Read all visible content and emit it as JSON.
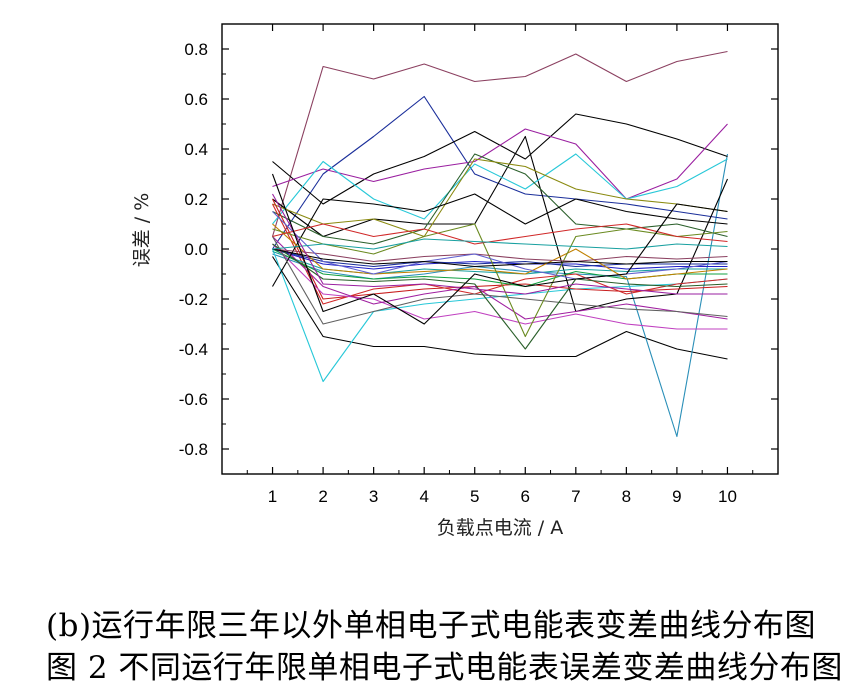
{
  "chart_data": {
    "type": "line",
    "xlabel": "负载点电流 / A",
    "ylabel": "误差 / %",
    "xlim": [
      0,
      11
    ],
    "ylim": [
      -0.9,
      0.9
    ],
    "x": [
      1,
      2,
      3,
      4,
      5,
      6,
      7,
      8,
      9,
      10
    ],
    "x_ticks": [
      "1",
      "2",
      "3",
      "4",
      "5",
      "6",
      "7",
      "8",
      "9",
      "10"
    ],
    "y_ticks": [
      "0.8",
      "0.6",
      "0.4",
      "0.2",
      "0.0",
      "-0.2",
      "-0.4",
      "-0.6",
      "-0.8"
    ],
    "y_tick_values": [
      0.8,
      0.6,
      0.4,
      0.2,
      0.0,
      -0.2,
      -0.4,
      -0.6,
      -0.8
    ],
    "grid": false,
    "legend": "none",
    "series": [
      {
        "color": "#8B4060",
        "values": [
          0.05,
          0.73,
          0.68,
          0.74,
          0.67,
          0.69,
          0.78,
          0.67,
          0.75,
          0.79
        ]
      },
      {
        "color": "#000000",
        "values": [
          -0.03,
          -0.35,
          -0.39,
          -0.39,
          -0.42,
          -0.43,
          -0.43,
          -0.33,
          -0.4,
          -0.44
        ]
      },
      {
        "color": "#2A8FB8",
        "values": [
          -0.02,
          -0.09,
          -0.12,
          -0.1,
          -0.07,
          -0.09,
          -0.1,
          -0.11,
          -0.75,
          0.38
        ]
      },
      {
        "color": "#28C8D8",
        "values": [
          0.0,
          -0.53,
          -0.25,
          -0.22,
          -0.2,
          -0.18,
          -0.16,
          -0.15,
          -0.14,
          -0.12
        ]
      },
      {
        "color": "#1A2E9A",
        "values": [
          0.0,
          0.3,
          0.45,
          0.61,
          0.3,
          0.22,
          0.2,
          0.18,
          0.15,
          0.12
        ]
      },
      {
        "color": "#000000",
        "values": [
          0.35,
          0.18,
          0.3,
          0.37,
          0.47,
          0.36,
          0.54,
          0.5,
          0.44,
          0.37
        ]
      },
      {
        "color": "#9A1FA0",
        "values": [
          0.25,
          0.32,
          0.27,
          0.32,
          0.35,
          0.48,
          0.42,
          0.2,
          0.28,
          0.5
        ]
      },
      {
        "color": "#000000",
        "values": [
          0.2,
          0.05,
          0.12,
          0.1,
          0.1,
          0.45,
          -0.25,
          -0.2,
          -0.18,
          0.28
        ]
      },
      {
        "color": "#28C8D8",
        "values": [
          0.1,
          0.35,
          0.2,
          0.12,
          0.34,
          0.24,
          0.38,
          0.2,
          0.25,
          0.36
        ]
      },
      {
        "color": "#2A5F2A",
        "values": [
          0.15,
          0.05,
          0.02,
          0.08,
          0.38,
          0.3,
          0.1,
          0.08,
          0.1,
          0.05
        ]
      },
      {
        "color": "#8A8A10",
        "values": [
          0.18,
          0.1,
          0.12,
          0.05,
          0.36,
          0.33,
          0.24,
          0.2,
          0.18,
          0.15
        ]
      },
      {
        "color": "#C81E1E",
        "values": [
          0.2,
          -0.2,
          -0.18,
          -0.16,
          -0.15,
          -0.14,
          -0.16,
          -0.17,
          -0.16,
          -0.15
        ]
      },
      {
        "color": "#D02828",
        "values": [
          0.18,
          -0.22,
          -0.16,
          -0.14,
          -0.18,
          -0.12,
          -0.1,
          -0.18,
          -0.14,
          -0.12
        ]
      },
      {
        "color": "#2020C8",
        "values": [
          0.0,
          -0.06,
          -0.08,
          -0.06,
          -0.05,
          -0.06,
          -0.06,
          -0.08,
          -0.07,
          -0.07
        ]
      },
      {
        "color": "#1A2E9A",
        "values": [
          0.0,
          -0.05,
          -0.07,
          -0.05,
          -0.06,
          -0.05,
          -0.07,
          -0.06,
          -0.06,
          -0.06
        ]
      },
      {
        "color": "#18A0A0",
        "values": [
          -0.01,
          -0.08,
          -0.1,
          -0.08,
          -0.09,
          -0.1,
          -0.08,
          -0.09,
          -0.08,
          -0.08
        ]
      },
      {
        "color": "#10A040",
        "values": [
          0.0,
          -0.1,
          -0.12,
          -0.11,
          -0.12,
          -0.15,
          -0.09,
          -0.12,
          -0.1,
          -0.1
        ]
      },
      {
        "color": "#C040C0",
        "values": [
          0.02,
          -0.18,
          -0.2,
          -0.28,
          -0.25,
          -0.3,
          -0.26,
          -0.3,
          -0.32,
          -0.32
        ]
      },
      {
        "color": "#A020A0",
        "values": [
          0.05,
          -0.15,
          -0.22,
          -0.18,
          -0.15,
          -0.28,
          -0.25,
          -0.22,
          -0.25,
          -0.28
        ]
      },
      {
        "color": "#000000",
        "values": [
          -0.15,
          0.2,
          0.18,
          0.15,
          0.22,
          0.1,
          0.2,
          0.15,
          0.12,
          0.1
        ]
      },
      {
        "color": "#606060",
        "values": [
          0.05,
          -0.3,
          -0.25,
          -0.2,
          -0.18,
          -0.2,
          -0.22,
          -0.24,
          -0.25,
          -0.27
        ]
      },
      {
        "color": "#2A5F2A",
        "values": [
          0.02,
          -0.12,
          -0.13,
          -0.12,
          -0.14,
          -0.4,
          -0.12,
          -0.14,
          -0.15,
          -0.14
        ]
      },
      {
        "color": "#C08000",
        "values": [
          0.1,
          -0.08,
          -0.1,
          -0.09,
          -0.08,
          -0.1,
          0.0,
          -0.12,
          -0.1,
          -0.08
        ]
      },
      {
        "color": "#6A8A20",
        "values": [
          0.08,
          0.02,
          -0.02,
          0.05,
          0.1,
          -0.35,
          0.05,
          0.08,
          0.05,
          0.07
        ]
      },
      {
        "color": "#8B4060",
        "values": [
          0.0,
          -0.02,
          -0.05,
          -0.03,
          -0.02,
          -0.04,
          -0.05,
          -0.03,
          -0.04,
          -0.03
        ]
      },
      {
        "color": "#6060D0",
        "values": [
          0.15,
          -0.05,
          -0.1,
          -0.05,
          -0.02,
          -0.08,
          -0.12,
          -0.1,
          -0.08,
          -0.05
        ]
      },
      {
        "color": "#D02828",
        "values": [
          0.05,
          0.1,
          0.05,
          0.08,
          0.02,
          0.05,
          0.08,
          0.1,
          0.05,
          0.03
        ]
      },
      {
        "color": "#000000",
        "values": [
          0.0,
          -0.04,
          -0.06,
          -0.05,
          -0.07,
          -0.06,
          -0.05,
          -0.06,
          -0.05,
          -0.05
        ]
      },
      {
        "color": "#18A0A0",
        "values": [
          0.0,
          0.02,
          0.0,
          0.04,
          0.03,
          0.02,
          0.01,
          0.0,
          0.02,
          0.01
        ]
      },
      {
        "color": "#9A1FA0",
        "values": [
          0.22,
          -0.14,
          -0.15,
          -0.14,
          -0.16,
          -0.18,
          -0.14,
          -0.16,
          -0.18,
          -0.18
        ]
      },
      {
        "color": "#000000",
        "values": [
          0.3,
          -0.25,
          -0.18,
          -0.3,
          -0.1,
          -0.15,
          -0.12,
          -0.1,
          0.18,
          0.15
        ]
      }
    ]
  },
  "captions": {
    "line1": "(b)运行年限三年以外单相电子式电能表变差曲线分布图",
    "line2": "图 2 不同运行年限单相电子式电能表误差变差曲线分布图"
  }
}
